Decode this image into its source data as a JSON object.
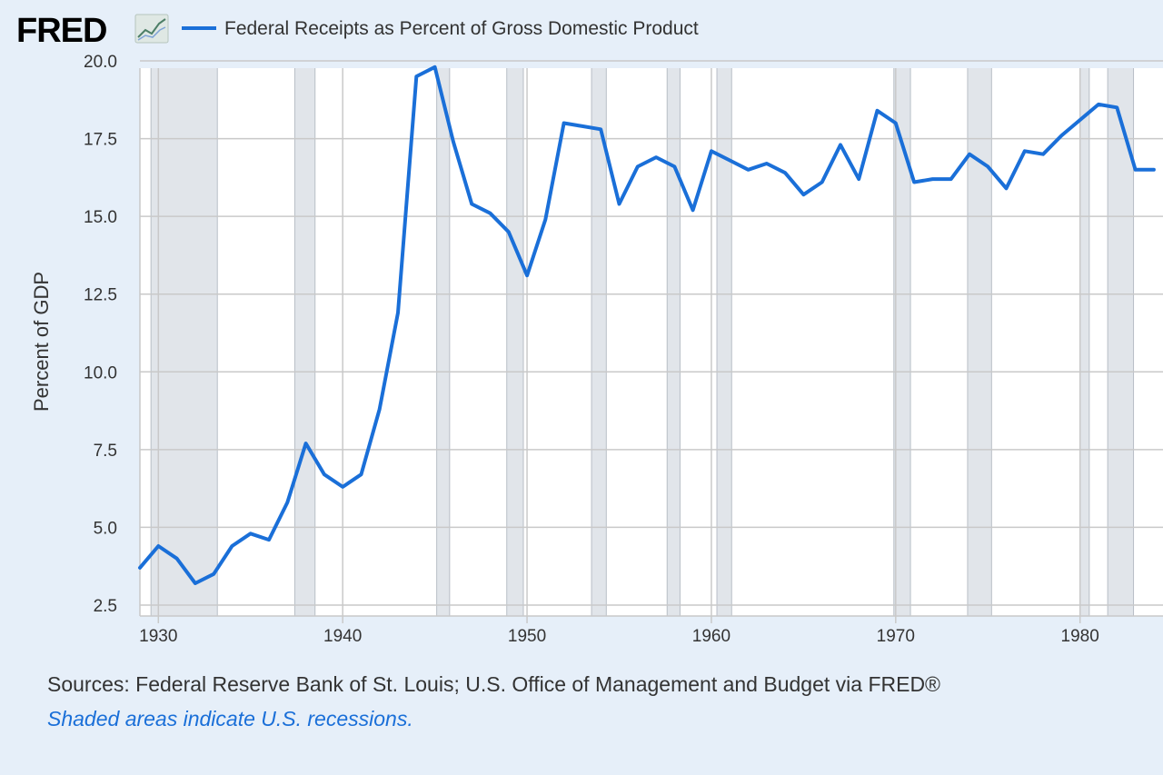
{
  "logo": {
    "text": "FRED",
    "icon": "trend-chart-icon"
  },
  "legend": {
    "label": "Federal Receipts as Percent of Gross Domestic Product",
    "color": "#1a6fd8"
  },
  "footer": {
    "sources": "Sources: Federal Reserve Bank of St. Louis; U.S. Office of Management and Budget via FRED®",
    "note": "Shaded areas indicate U.S. recessions."
  },
  "colors": {
    "background": "#e6eff9",
    "plot": "#ffffff",
    "grid": "#c7c7c7",
    "recession": "#e1e5ea",
    "line": "#1a6fd8"
  },
  "chart_data": {
    "type": "line",
    "title": "Federal Receipts as Percent of Gross Domestic Product",
    "xlabel": "",
    "ylabel": "Percent of GDP",
    "xlim": [
      1929,
      1984.5
    ],
    "ylim": [
      2.5,
      20.5
    ],
    "grid": true,
    "legend_position": "top-left",
    "x_ticks": [
      1930,
      1940,
      1950,
      1960,
      1970,
      1980
    ],
    "y_ticks": [
      2.5,
      5.0,
      7.5,
      10.0,
      12.5,
      15.0,
      17.5,
      20.0
    ],
    "y_tick_labels": [
      "2.5",
      "5.0",
      "7.5",
      "10.0",
      "12.5",
      "15.0",
      "17.5",
      "20.0"
    ],
    "recessions": [
      [
        1929.6,
        1933.2
      ],
      [
        1937.4,
        1938.5
      ],
      [
        1945.1,
        1945.8
      ],
      [
        1948.9,
        1949.8
      ],
      [
        1953.5,
        1954.3
      ],
      [
        1957.6,
        1958.3
      ],
      [
        1960.3,
        1961.1
      ],
      [
        1969.9,
        1970.8
      ],
      [
        1973.9,
        1975.2
      ],
      [
        1980.0,
        1980.5
      ],
      [
        1981.5,
        1982.9
      ]
    ],
    "series": [
      {
        "name": "Federal Receipts as Percent of Gross Domestic Product",
        "x": [
          1929,
          1930,
          1931,
          1932,
          1933,
          1934,
          1935,
          1936,
          1937,
          1938,
          1939,
          1940,
          1941,
          1942,
          1943,
          1944,
          1945,
          1946,
          1947,
          1948,
          1949,
          1950,
          1951,
          1952,
          1953,
          1954,
          1955,
          1956,
          1957,
          1958,
          1959,
          1960,
          1961,
          1962,
          1963,
          1964,
          1965,
          1966,
          1967,
          1968,
          1969,
          1970,
          1971,
          1972,
          1973,
          1974,
          1975,
          1976,
          1977,
          1978,
          1979,
          1980,
          1981,
          1982,
          1983,
          1984
        ],
        "values": [
          3.7,
          4.4,
          4.0,
          3.2,
          3.5,
          4.4,
          4.8,
          4.6,
          5.8,
          7.7,
          6.7,
          6.3,
          6.7,
          8.8,
          11.9,
          19.5,
          19.8,
          17.4,
          15.4,
          15.1,
          14.5,
          13.1,
          14.9,
          18.0,
          17.9,
          17.8,
          15.4,
          16.6,
          16.9,
          16.6,
          15.2,
          17.1,
          16.8,
          16.5,
          16.7,
          16.4,
          15.7,
          16.1,
          17.3,
          16.2,
          18.4,
          18.0,
          16.1,
          16.2,
          16.2,
          17.0,
          16.6,
          15.9,
          17.1,
          17.0,
          17.6,
          18.1,
          18.6,
          18.5,
          16.5,
          16.5
        ]
      }
    ]
  }
}
